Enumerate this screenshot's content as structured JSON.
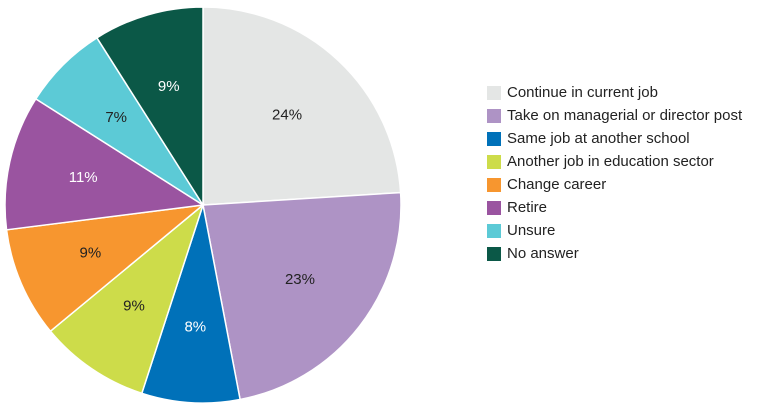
{
  "chart_data": {
    "type": "pie",
    "categories": [
      "Continue in current job",
      "Take on managerial or director post",
      "Same job at another school",
      "Another job in education sector",
      "Change career",
      "Retire",
      "Unsure",
      "No answer"
    ],
    "values": [
      24,
      23,
      8,
      9,
      9,
      11,
      7,
      9
    ],
    "value_labels": [
      "24%",
      "23%",
      "8%",
      "9%",
      "9%",
      "11%",
      "7%",
      "9%"
    ],
    "colors": [
      "#e4e6e5",
      "#ae93c5",
      "#0071b9",
      "#cddc4a",
      "#f7962f",
      "#9a54a0",
      "#5ccad6",
      "#0b5847"
    ],
    "legend": "right"
  }
}
